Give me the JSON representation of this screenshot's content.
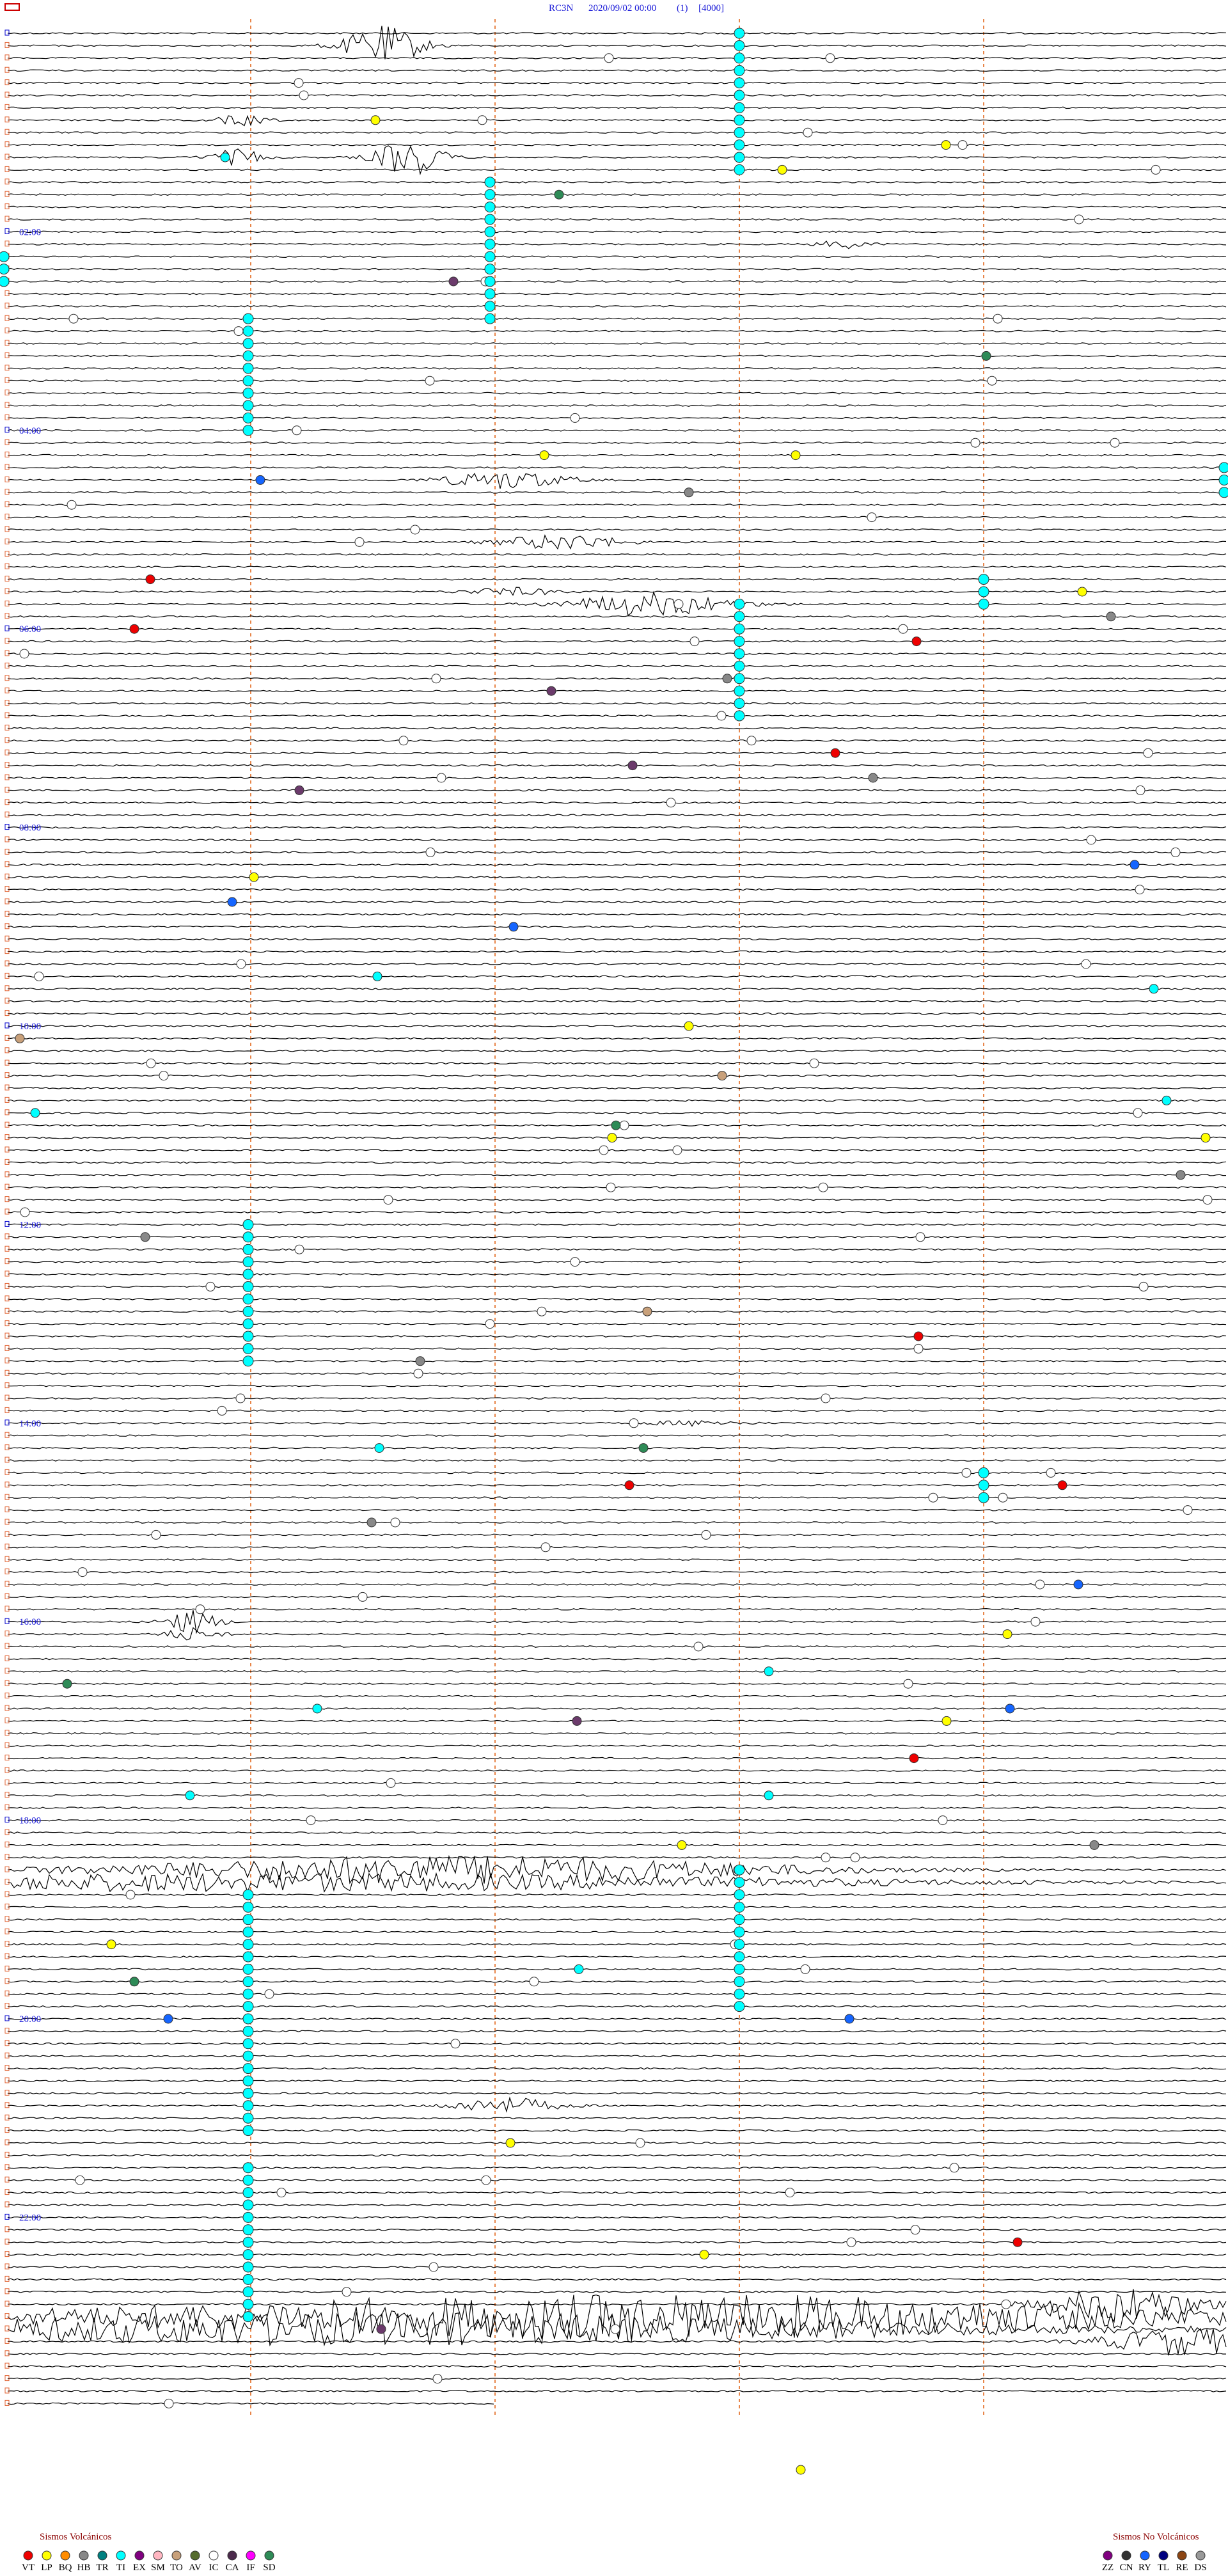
{
  "header": {
    "station": "RC3N",
    "datetime": "2020/09/02 00:00",
    "page": "(1)",
    "scale": "[4000]"
  },
  "time_labels": [
    "02:00",
    "04:00",
    "06:00",
    "08:00",
    "10:00",
    "12:00",
    "14:00",
    "16:00",
    "18:00",
    "20:00",
    "22:00"
  ],
  "legend": {
    "volcanic": {
      "title": "Sismos Volcánicos",
      "codes": [
        "VT",
        "LP",
        "BQ",
        "HB",
        "TR",
        "TI",
        "EX",
        "SM",
        "TO",
        "AV",
        "IC",
        "CA",
        "IF",
        "SD"
      ]
    },
    "non_volcanic": {
      "title": "Sismos No Volcánicos",
      "codes": [
        "ZZ",
        "CN",
        "RY",
        "TL",
        "RE",
        "DS"
      ]
    }
  }
}
